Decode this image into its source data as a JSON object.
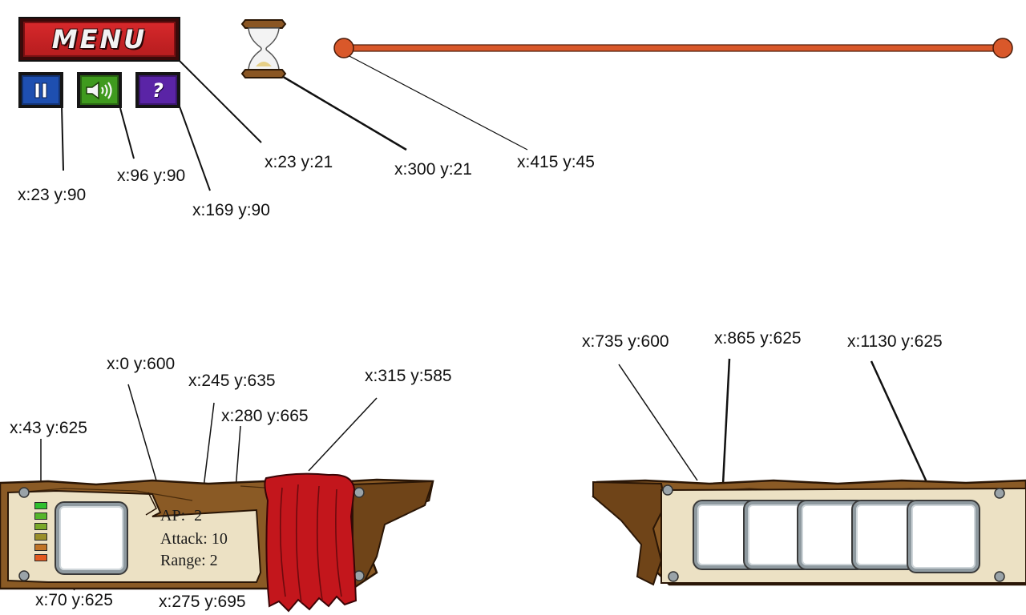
{
  "menu": {
    "label": "MENU"
  },
  "controls": {
    "pause_icon": "pause-icon",
    "sound_icon": "speaker-icon",
    "help_icon": "question-icon",
    "help_glyph": "?"
  },
  "timer": {
    "icon": "hourglass-icon"
  },
  "unit_stats": {
    "ap_label": "AP:",
    "ap_value": "2",
    "attack_label": "Attack:",
    "attack_value": "10",
    "range_label": "Range:",
    "range_value": "2",
    "ap_meter": {
      "segments": 6,
      "colors": [
        "#2fbf2f",
        "#56b52c",
        "#7aa82a",
        "#9a8f2a",
        "#c07428",
        "#e25a20"
      ]
    }
  },
  "annotations": {
    "menu": "x:23 y:21",
    "pause": "x:23 y:90",
    "sound": "x:96 y:90",
    "help": "x:169 y:90",
    "hourglass": "x:300 y:21",
    "timeline": "x:415 y:45",
    "left_panel": "x:0 y:600",
    "ap_meter": "x:43 y:625",
    "unit_portrait": "x:70 y:625",
    "ap_text": "x:245 y:635",
    "attack_text": "x:280 y:665",
    "range_text": "x:275 y:695",
    "cloth": "x:315 y:585",
    "right_panel": "x:735 y:600",
    "first_slot": "x:865 y:625",
    "last_slot": "x:1130 y:625"
  },
  "colors": {
    "menu_red": "#c62224",
    "pause_blue": "#1e4fb0",
    "sound_green": "#3f9a1e",
    "help_purple": "#5a24a6",
    "timeline_orange": "#d9582a",
    "wood": "#8a5a25",
    "parchment": "#ece1c4",
    "cloth_red": "#c3161c"
  }
}
